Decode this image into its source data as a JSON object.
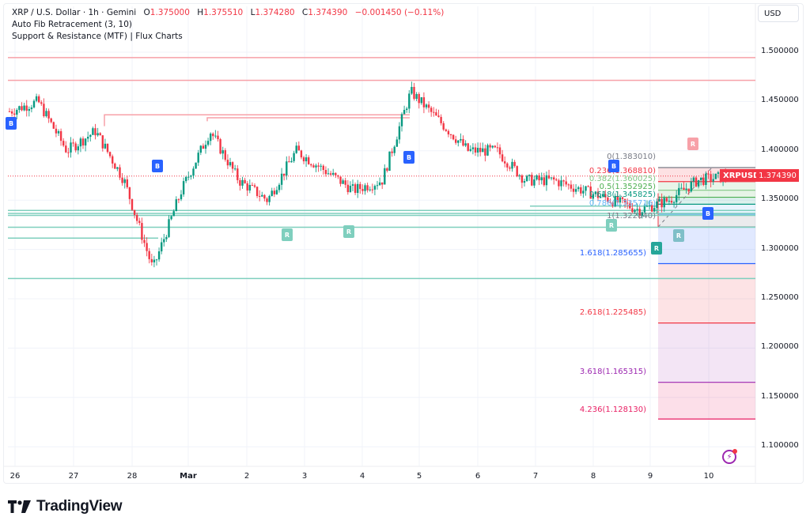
{
  "legend": {
    "title": "XRP / U.S. Dollar · 1h · Gemini",
    "o_label": "O",
    "o": "1.375000",
    "h_label": "H",
    "h": "1.375510",
    "l_label": "L",
    "l": "1.374280",
    "c_label": "C",
    "c": "1.374390",
    "change": "−0.001450 (−0.11%)",
    "indicators": [
      "Auto Fib Retracement (3, 10)",
      "Support & Resistance (MTF) | Flux Charts"
    ]
  },
  "currency_button": "USD",
  "current_price": {
    "symbol": "XRPUSD",
    "value": "1.374390",
    "color": "#f23645"
  },
  "colors": {
    "up": "#089981",
    "down": "#f23645",
    "resistance": "#f7a1a8",
    "support": "#7fcfbe",
    "grid": "#f0f3fa"
  },
  "price_axis": [
    "1.500000",
    "1.450000",
    "1.400000",
    "1.350000",
    "1.300000",
    "1.250000",
    "1.200000",
    "1.150000",
    "1.100000"
  ],
  "time_axis": [
    "26",
    "27",
    "28",
    "Mar",
    "2",
    "3",
    "4",
    "5",
    "6",
    "7",
    "8",
    "9",
    "10"
  ],
  "fib_levels": [
    {
      "label": "0(1.383010)",
      "color": "#787b86"
    },
    {
      "label": "0.236(1.368810)",
      "color": "#f23645"
    },
    {
      "label": "0.382(1.360025)",
      "color": "#81c784"
    },
    {
      "label": "0.5(1.352925)",
      "color": "#4caf50"
    },
    {
      "label": "0.618(1.345825)",
      "color": "#089981"
    },
    {
      "label": "0.786(1.335716)",
      "color": "#64b5f6"
    },
    {
      "label": "1(1.322840)",
      "color": "#787b86"
    },
    {
      "label": "1.618(1.285655)",
      "color": "#2962ff"
    },
    {
      "label": "2.618(1.225485)",
      "color": "#f23645"
    },
    {
      "label": "3.618(1.165315)",
      "color": "#9c27b0"
    },
    {
      "label": "4.236(1.128130)",
      "color": "#e91e63"
    }
  ],
  "signals": [
    {
      "type": "B",
      "color": "#2962ff"
    },
    {
      "type": "B",
      "color": "#2962ff"
    },
    {
      "type": "B",
      "color": "#2962ff"
    },
    {
      "type": "B",
      "color": "#2962ff"
    },
    {
      "type": "B",
      "color": "#2962ff"
    },
    {
      "type": "R",
      "color": "#f7a1a8"
    },
    {
      "type": "R",
      "color": "#7fcfbe"
    },
    {
      "type": "R",
      "color": "#7fcfbe"
    },
    {
      "type": "R",
      "color": "#7fcfbe"
    },
    {
      "type": "R",
      "color": "#7fbfc8"
    },
    {
      "type": "R",
      "color": "#26a69a"
    }
  ],
  "branding": {
    "logo_text": "TradingView"
  },
  "chart_data": {
    "type": "candlestick",
    "title": "XRP / U.S. Dollar · 1h · Gemini",
    "xlabel": "",
    "ylabel": "USD",
    "ylim": [
      1.08,
      1.52
    ],
    "x_ticks": [
      "26",
      "27",
      "28",
      "Mar",
      "2",
      "3",
      "4",
      "5",
      "6",
      "7",
      "8",
      "9",
      "10"
    ],
    "y_ticks": [
      1.5,
      1.45,
      1.4,
      1.35,
      1.3,
      1.25,
      1.2,
      1.15,
      1.1
    ],
    "approx_path": {
      "dates": [
        "26",
        "26.5",
        "27",
        "27.5",
        "28",
        "28.5",
        "Mar",
        "Mar.5",
        "2",
        "2.5",
        "3",
        "3.5",
        "4",
        "4.5",
        "5",
        "5.5",
        "6",
        "6.5",
        "7",
        "7.5",
        "8",
        "8.5",
        "9",
        "9.5",
        "10",
        "10.3"
      ],
      "close": [
        1.44,
        1.45,
        1.4,
        1.42,
        1.37,
        1.28,
        1.36,
        1.42,
        1.37,
        1.35,
        1.4,
        1.38,
        1.36,
        1.37,
        1.46,
        1.43,
        1.4,
        1.4,
        1.37,
        1.37,
        1.36,
        1.35,
        1.34,
        1.35,
        1.37,
        1.374
      ]
    },
    "last": {
      "open": 1.375,
      "high": 1.37551,
      "low": 1.37428,
      "close": 1.37439,
      "change": -0.00145,
      "change_pct": -0.11
    },
    "resistance_levels": [
      1.4945,
      1.4715,
      1.4365,
      1.4335
    ],
    "support_levels": [
      1.3395,
      1.3365,
      1.3345,
      1.3225,
      1.3115,
      1.2705
    ],
    "fib": {
      "0": 1.38301,
      "0.236": 1.36881,
      "0.382": 1.360025,
      "0.5": 1.352925,
      "0.618": 1.345825,
      "0.786": 1.335716,
      "1": 1.32284,
      "1.618": 1.285655,
      "2.618": 1.225485,
      "3.618": 1.165315,
      "4.236": 1.12813
    }
  }
}
